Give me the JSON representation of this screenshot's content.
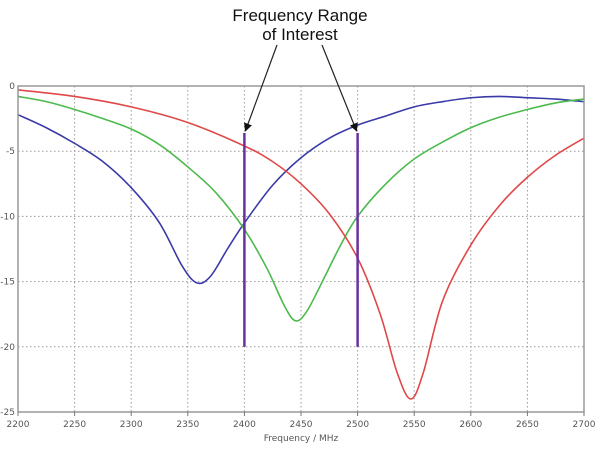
{
  "chart_data": {
    "type": "line",
    "title": "",
    "xlabel": "Frequency / MHz",
    "ylabel": "",
    "xlim": [
      2200,
      2700
    ],
    "ylim": [
      -25,
      0
    ],
    "xticks": [
      2200,
      2250,
      2300,
      2350,
      2400,
      2450,
      2500,
      2550,
      2600,
      2650,
      2700
    ],
    "yticks": [
      0,
      -5,
      -10,
      -15,
      -20,
      -25
    ],
    "grid": true,
    "grid_style": "dotted",
    "legend": "none",
    "annotation": {
      "lines": [
        "Frequency Range",
        "of Interest"
      ],
      "range": [
        2400,
        2500
      ],
      "marker_top": -3.6,
      "marker_bottom": -20,
      "marker_color": "#6a2fa0"
    },
    "series": [
      {
        "color": "#3a3aa8",
        "x": [
          2200,
          2225,
          2250,
          2275,
          2300,
          2325,
          2345,
          2358,
          2370,
          2385,
          2400,
          2425,
          2450,
          2475,
          2500,
          2525,
          2550,
          2575,
          2600,
          2625,
          2650,
          2675,
          2700
        ],
        "y": [
          -2.2,
          -3.2,
          -4.4,
          -5.8,
          -7.8,
          -10.5,
          -13.8,
          -15.1,
          -14.6,
          -12.5,
          -10.5,
          -7.6,
          -5.5,
          -4.0,
          -3.0,
          -2.3,
          -1.6,
          -1.2,
          -0.9,
          -0.8,
          -0.9,
          -1.0,
          -1.2
        ]
      },
      {
        "color": "#4cba4c",
        "x": [
          2200,
          2225,
          2250,
          2275,
          2300,
          2325,
          2350,
          2375,
          2400,
          2420,
          2435,
          2445,
          2455,
          2470,
          2485,
          2500,
          2525,
          2550,
          2575,
          2600,
          2625,
          2650,
          2675,
          2700
        ],
        "y": [
          -0.8,
          -1.2,
          -1.8,
          -2.5,
          -3.3,
          -4.5,
          -6.2,
          -8.2,
          -11.0,
          -14.0,
          -16.8,
          -18.0,
          -17.3,
          -14.8,
          -12.2,
          -10.0,
          -7.5,
          -5.6,
          -4.3,
          -3.2,
          -2.4,
          -1.8,
          -1.3,
          -1.0
        ]
      },
      {
        "color": "#e04848",
        "x": [
          2200,
          2250,
          2300,
          2350,
          2400,
          2425,
          2450,
          2475,
          2500,
          2520,
          2535,
          2547,
          2558,
          2575,
          2600,
          2625,
          2650,
          2675,
          2700
        ],
        "y": [
          -0.3,
          -0.8,
          -1.6,
          -2.8,
          -4.6,
          -5.8,
          -7.5,
          -9.8,
          -13.2,
          -17.5,
          -22.0,
          -24.0,
          -22.0,
          -16.5,
          -12.2,
          -9.2,
          -7.0,
          -5.3,
          -4.0
        ]
      }
    ]
  }
}
